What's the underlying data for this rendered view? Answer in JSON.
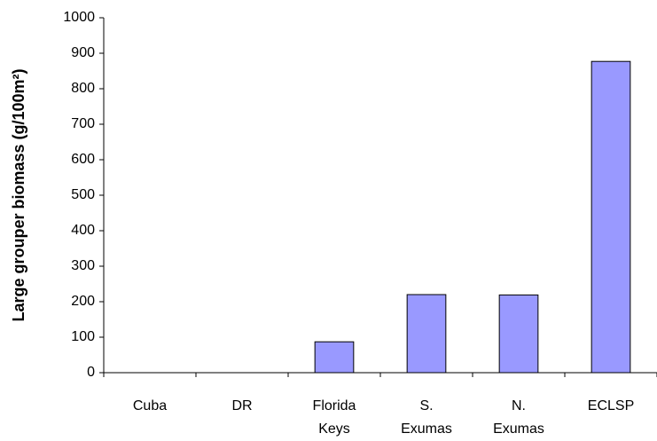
{
  "chart_data": {
    "type": "bar",
    "y_label": "Large grouper biomass (g/100m²)",
    "categories": [
      "Cuba",
      "DR",
      "Florida\nKeys",
      "S.\nExumas",
      "N.\nExumas",
      "ECLSP"
    ],
    "values": [
      0,
      0,
      87,
      220,
      219,
      877
    ],
    "color": "#9999ff",
    "ylim": [
      0,
      1000
    ],
    "yticks": [
      0,
      100,
      200,
      300,
      400,
      500,
      600,
      700,
      800,
      900,
      1000
    ],
    "grid": false
  }
}
